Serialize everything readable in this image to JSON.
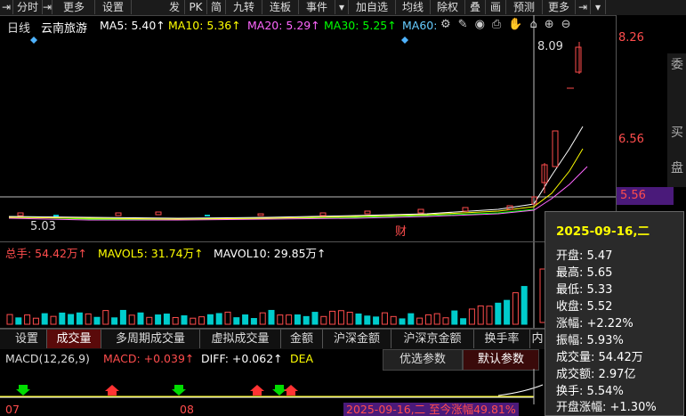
{
  "toolbar": {
    "items": [
      "分时",
      "更多",
      "设置",
      "发",
      "PK",
      "简",
      "九转",
      "连板",
      "事件",
      "加自选",
      "均线",
      "除权",
      "叠",
      "画",
      "预测",
      "更多"
    ]
  },
  "chart": {
    "period": "日线",
    "stock_name": "云南旅游",
    "ma": [
      {
        "label": "MA5: 5.40↑",
        "color": "#ffffff"
      },
      {
        "label": "MA10: 5.36↑",
        "color": "#ffff00"
      },
      {
        "label": "MA20: 5.29↑",
        "color": "#ff66ff"
      },
      {
        "label": "MA30: 5.25↑",
        "color": "#00ff00"
      },
      {
        "label": "MA60:",
        "color": "#66ccff"
      }
    ],
    "price_high": "8.26",
    "price_mid": "6.56",
    "price_current": "5.56",
    "peak_label": "8.09",
    "low_label": "5.03",
    "event_label": "财",
    "side_chars": [
      "委",
      "买",
      "盘"
    ]
  },
  "volume": {
    "total": "总手: 54.42万↑",
    "mavol5": "MAVOL5: 31.74万↑",
    "mavol10": "MAVOL10: 29.85万↑"
  },
  "tabs": [
    "设置",
    "成交量",
    "多周期成交量",
    "虚拟成交量",
    "金额",
    "沪深金额",
    "沪深京金额",
    "换手率",
    "内"
  ],
  "macd": {
    "label": "MACD(12,26,9)",
    "macd": "MACD: +0.039↑",
    "diff": "DIFF: +0.062↑",
    "dea": "DEA",
    "btn_opt": "优选参数",
    "btn_default": "默认参数"
  },
  "dates": {
    "d1": "07",
    "d2": "08",
    "range": "2025-09-16,二 至今涨幅49.81%"
  },
  "info": {
    "date": "2025-09-16,二",
    "rows": [
      {
        "label": "开盘: 5.47",
        "color": "#ffffff"
      },
      {
        "label": "最高: 5.65",
        "color": "#ffffff"
      },
      {
        "label": "最低: 5.33",
        "color": "#ffffff"
      },
      {
        "label": "收盘: 5.52",
        "color": "#ffffff"
      },
      {
        "label": "涨幅: +2.22%",
        "color": "#ffffff"
      },
      {
        "label": "振幅: 5.93%",
        "color": "#ffffff"
      },
      {
        "label": "成交量: 54.42万",
        "color": "#ffffff"
      },
      {
        "label": "成交额: 2.97亿",
        "color": "#ffffff"
      },
      {
        "label": "换手: 5.54%",
        "color": "#ffffff"
      },
      {
        "label": "开盘涨幅: +1.30%",
        "color": "#ffffff"
      }
    ]
  }
}
